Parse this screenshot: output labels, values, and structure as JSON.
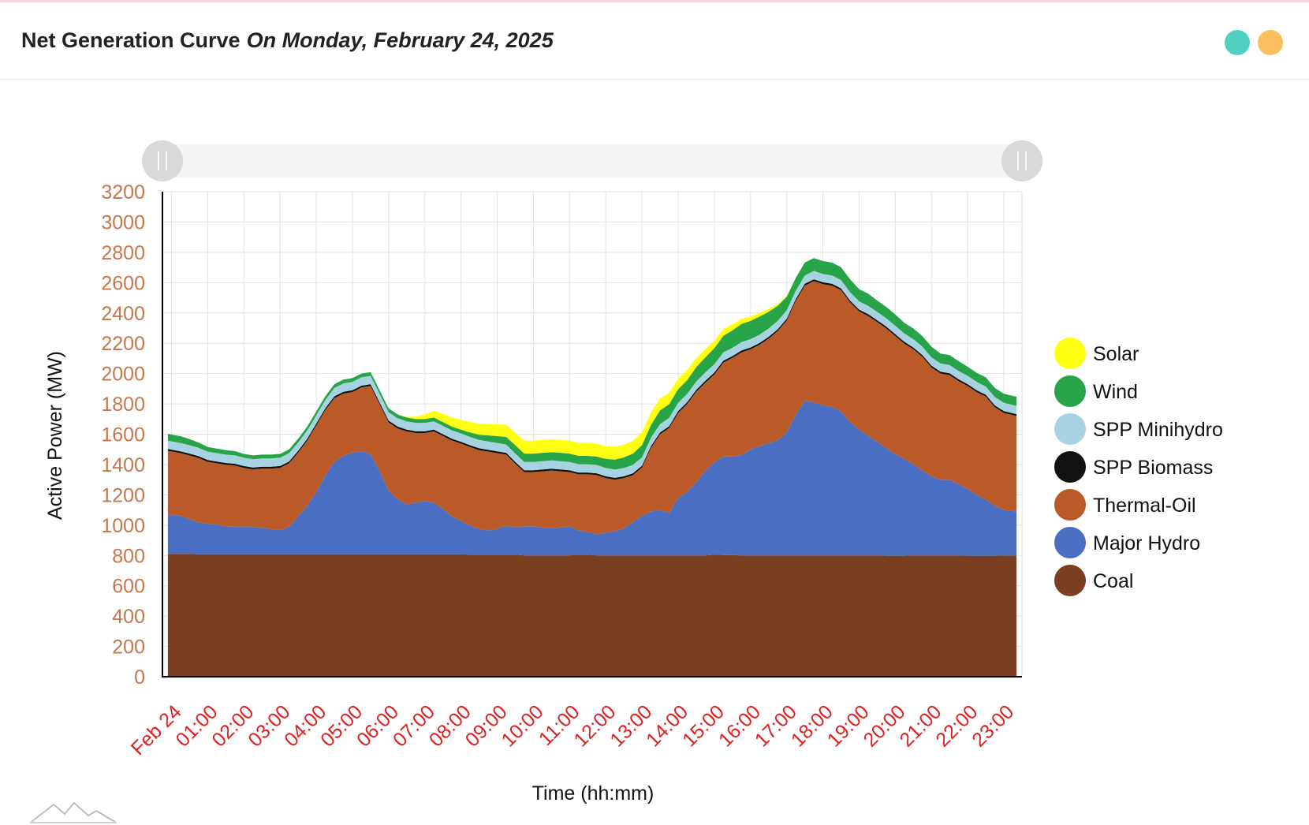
{
  "header": {
    "title": "Net Generation Curve",
    "subtitle": "On Monday, February 24, 2025"
  },
  "colors": {
    "coal": "#7b3f22",
    "major_hydro": "#4a6ec1",
    "thermal_oil": "#b95a28",
    "spp_biomass": "#111111",
    "spp_minihydro": "#a6d2e2",
    "wind": "#27a448",
    "solar": "#ffff14",
    "tick_y": "#c7764a",
    "tick_x": "#e02020",
    "grid": "#e3e3e3",
    "dot_teal": "#4fd1bf",
    "dot_orange": "#fdbf5d"
  },
  "chart_data": {
    "type": "area",
    "stacked": true,
    "title": "Net Generation Curve",
    "xlabel": "Time (hh:mm)",
    "ylabel": "Active Power (MW)",
    "ylim": [
      0,
      3200
    ],
    "xlim": [
      -0.25,
      23.5
    ],
    "yticks": [
      0,
      200,
      400,
      600,
      800,
      1000,
      1200,
      1400,
      1600,
      1800,
      2000,
      2200,
      2400,
      2600,
      2800,
      3000,
      3200
    ],
    "xtick_labels": [
      "Feb 24",
      "01:00",
      "02:00",
      "03:00",
      "04:00",
      "05:00",
      "06:00",
      "07:00",
      "08:00",
      "09:00",
      "10:00",
      "11:00",
      "12:00",
      "13:00",
      "14:00",
      "15:00",
      "16:00",
      "17:00",
      "18:00",
      "19:00",
      "20:00",
      "21:00",
      "22:00",
      "23:00"
    ],
    "x": [
      -0.1,
      0.25,
      0.5,
      0.75,
      1.0,
      1.25,
      1.5,
      1.75,
      2.0,
      2.25,
      2.5,
      2.75,
      3.0,
      3.25,
      3.5,
      3.75,
      4.0,
      4.25,
      4.5,
      4.75,
      5.0,
      5.25,
      5.5,
      5.75,
      6.0,
      6.25,
      6.5,
      6.75,
      7.0,
      7.25,
      7.5,
      7.75,
      8.0,
      8.25,
      8.5,
      8.75,
      9.0,
      9.25,
      9.5,
      9.75,
      10.0,
      10.25,
      10.5,
      10.75,
      11.0,
      11.25,
      11.5,
      11.75,
      12.0,
      12.25,
      12.5,
      12.75,
      13.0,
      13.25,
      13.5,
      13.75,
      14.0,
      14.25,
      14.5,
      14.75,
      15.0,
      15.25,
      15.5,
      15.75,
      16.0,
      16.25,
      16.5,
      16.75,
      17.0,
      17.25,
      17.5,
      17.75,
      18.0,
      18.25,
      18.5,
      18.75,
      19.0,
      19.25,
      19.5,
      19.75,
      20.0,
      20.25,
      20.5,
      20.75,
      21.0,
      21.25,
      21.5,
      21.75,
      22.0,
      22.25,
      22.5,
      22.75,
      23.0,
      23.35
    ],
    "series": [
      {
        "name": "Coal",
        "color_key": "coal",
        "values": [
          810,
          810,
          810,
          808,
          808,
          808,
          808,
          808,
          808,
          808,
          808,
          808,
          808,
          808,
          808,
          808,
          808,
          808,
          808,
          808,
          808,
          808,
          808,
          808,
          808,
          808,
          808,
          808,
          808,
          808,
          808,
          808,
          808,
          805,
          805,
          805,
          805,
          805,
          805,
          800,
          800,
          800,
          800,
          800,
          800,
          805,
          805,
          800,
          800,
          800,
          800,
          800,
          800,
          800,
          800,
          800,
          800,
          800,
          800,
          800,
          805,
          803,
          803,
          800,
          800,
          800,
          800,
          800,
          800,
          800,
          800,
          800,
          800,
          800,
          800,
          800,
          800,
          800,
          800,
          798,
          798,
          798,
          800,
          800,
          800,
          800,
          800,
          800,
          798,
          798,
          798,
          798,
          800,
          800
        ]
      },
      {
        "name": "Major Hydro",
        "color_key": "major_hydro",
        "values": [
          260,
          250,
          230,
          210,
          200,
          195,
          185,
          180,
          180,
          180,
          175,
          165,
          160,
          180,
          250,
          320,
          410,
          520,
          610,
          650,
          670,
          680,
          660,
          550,
          420,
          360,
          330,
          340,
          350,
          340,
          300,
          250,
          220,
          190,
          170,
          160,
          170,
          190,
          180,
          190,
          190,
          185,
          180,
          185,
          190,
          160,
          150,
          140,
          150,
          160,
          180,
          220,
          260,
          290,
          300,
          280,
          380,
          420,
          480,
          560,
          610,
          650,
          650,
          660,
          700,
          720,
          740,
          760,
          810,
          930,
          1020,
          1010,
          990,
          980,
          950,
          880,
          830,
          790,
          750,
          710,
          670,
          640,
          600,
          560,
          520,
          500,
          500,
          470,
          440,
          400,
          370,
          330,
          300,
          290
        ]
      },
      {
        "name": "Thermal-Oil",
        "color_key": "thermal_oil",
        "values": [
          420,
          415,
          420,
          425,
          410,
          405,
          405,
          405,
          390,
          380,
          390,
          400,
          410,
          420,
          420,
          430,
          440,
          430,
          420,
          410,
          400,
          420,
          450,
          440,
          450,
          470,
          480,
          460,
          450,
          470,
          480,
          500,
          510,
          520,
          520,
          520,
          500,
          470,
          420,
          360,
          360,
          370,
          380,
          370,
          360,
          370,
          380,
          390,
          360,
          340,
          330,
          310,
          320,
          420,
          500,
          560,
          560,
          580,
          600,
          580,
          580,
          620,
          650,
          680,
          660,
          670,
          690,
          720,
          740,
          750,
          760,
          800,
          800,
          800,
          800,
          790,
          780,
          790,
          790,
          790,
          780,
          760,
          760,
          750,
          720,
          700,
          690,
          680,
          680,
          680,
          680,
          650,
          640,
          630
        ]
      },
      {
        "name": "SPP Biomass",
        "color_key": "spp_biomass",
        "values": [
          12,
          12,
          12,
          12,
          12,
          12,
          12,
          12,
          12,
          12,
          12,
          12,
          12,
          12,
          12,
          12,
          12,
          12,
          12,
          12,
          12,
          12,
          12,
          12,
          12,
          12,
          12,
          12,
          12,
          12,
          12,
          12,
          12,
          12,
          12,
          12,
          12,
          12,
          12,
          12,
          12,
          12,
          12,
          12,
          12,
          12,
          12,
          12,
          12,
          12,
          12,
          12,
          12,
          12,
          12,
          12,
          12,
          12,
          12,
          12,
          12,
          12,
          12,
          12,
          12,
          12,
          12,
          12,
          12,
          12,
          12,
          12,
          12,
          12,
          12,
          12,
          12,
          12,
          12,
          12,
          12,
          12,
          12,
          12,
          12,
          12,
          12,
          12,
          12,
          12,
          12,
          12,
          12,
          12
        ]
      },
      {
        "name": "SPP Minihydro",
        "color_key": "spp_minihydro",
        "values": [
          55,
          55,
          55,
          55,
          55,
          55,
          55,
          55,
          55,
          55,
          55,
          55,
          55,
          55,
          55,
          55,
          55,
          55,
          55,
          55,
          55,
          55,
          55,
          55,
          55,
          55,
          55,
          55,
          55,
          55,
          55,
          55,
          55,
          55,
          55,
          55,
          55,
          55,
          55,
          55,
          55,
          55,
          55,
          55,
          55,
          55,
          55,
          55,
          55,
          55,
          55,
          55,
          55,
          55,
          55,
          55,
          55,
          55,
          55,
          55,
          55,
          55,
          55,
          55,
          55,
          55,
          55,
          55,
          55,
          55,
          55,
          55,
          55,
          55,
          55,
          55,
          55,
          55,
          55,
          55,
          55,
          55,
          55,
          55,
          55,
          55,
          55,
          55,
          55,
          55,
          55,
          55,
          55,
          55
        ]
      },
      {
        "name": "Wind",
        "color_key": "wind",
        "values": [
          45,
          45,
          40,
          35,
          30,
          30,
          30,
          28,
          25,
          25,
          25,
          25,
          25,
          25,
          25,
          25,
          25,
          25,
          25,
          25,
          25,
          25,
          25,
          25,
          25,
          25,
          25,
          25,
          25,
          25,
          25,
          25,
          25,
          30,
          35,
          40,
          45,
          50,
          55,
          55,
          55,
          55,
          55,
          55,
          55,
          55,
          55,
          55,
          60,
          65,
          70,
          75,
          80,
          85,
          90,
          90,
          90,
          90,
          95,
          100,
          105,
          110,
          115,
          120,
          120,
          120,
          110,
          100,
          90,
          85,
          85,
          85,
          85,
          85,
          85,
          85,
          80,
          80,
          75,
          75,
          75,
          70,
          70,
          70,
          70,
          65,
          65,
          65,
          60,
          60,
          60,
          60,
          60,
          60
        ]
      },
      {
        "name": "Solar",
        "color_key": "solar",
        "values": [
          0,
          0,
          0,
          0,
          0,
          0,
          0,
          0,
          0,
          0,
          0,
          0,
          0,
          0,
          0,
          0,
          0,
          0,
          0,
          0,
          0,
          0,
          0,
          0,
          0,
          0,
          5,
          15,
          30,
          45,
          55,
          60,
          65,
          70,
          72,
          75,
          78,
          80,
          82,
          85,
          85,
          85,
          85,
          85,
          85,
          85,
          85,
          85,
          85,
          85,
          85,
          85,
          85,
          82,
          80,
          75,
          70,
          65,
          60,
          55,
          50,
          45,
          40,
          35,
          30,
          25,
          20,
          12,
          5,
          0,
          0,
          0,
          0,
          0,
          0,
          0,
          0,
          0,
          0,
          0,
          0,
          0,
          0,
          0,
          0,
          0,
          0,
          0,
          0,
          0,
          0,
          0,
          0,
          0
        ]
      }
    ],
    "legend": {
      "position": "right",
      "items": [
        {
          "label": "Solar",
          "color_key": "solar"
        },
        {
          "label": "Wind",
          "color_key": "wind"
        },
        {
          "label": "SPP Minihydro",
          "color_key": "spp_minihydro"
        },
        {
          "label": "SPP Biomass",
          "color_key": "spp_biomass"
        },
        {
          "label": "Thermal-Oil",
          "color_key": "thermal_oil"
        },
        {
          "label": "Major Hydro",
          "color_key": "major_hydro"
        },
        {
          "label": "Coal",
          "color_key": "coal"
        }
      ]
    }
  },
  "range_slider": {
    "left_handle_icon": "grip-icon",
    "right_handle_icon": "grip-icon"
  },
  "logo": {
    "icon": "mountain-logo-icon"
  }
}
